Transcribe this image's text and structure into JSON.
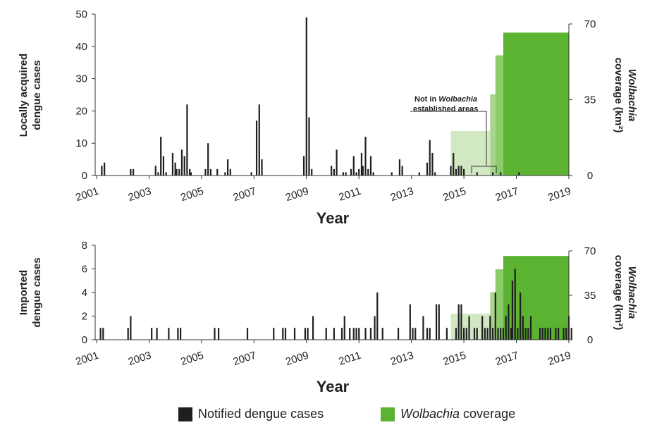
{
  "colors": {
    "cases": "#1f1f1f",
    "wolb_light": "#d2e8c3",
    "wolb_mid": "#a9d48d",
    "wolb_medium": "#8ccb6a",
    "wolb_dark": "#5cb331",
    "axis": "#333333"
  },
  "legend": {
    "cases_label": "Notified dengue cases",
    "wolbachia_label": "Wolbachia",
    "wolbachia_suffix": " coverage"
  },
  "chart_data": [
    {
      "type": "bar",
      "id": "local",
      "ylabel_lines": [
        "Locally acquired",
        "dengue cases"
      ],
      "y2label_italic": "Wolbachia",
      "y2label_rest": "coverage (km²)",
      "xlabel": "Year",
      "xlim": [
        2001,
        2019
      ],
      "ylim": [
        0,
        50
      ],
      "y2lim": [
        0,
        70
      ],
      "yticks": [
        "0",
        "10",
        "20",
        "30",
        "40",
        "50"
      ],
      "y2ticks": [
        "0",
        "35",
        "70"
      ],
      "xticks": [
        "2001",
        "2003",
        "2005",
        "2007",
        "2009",
        "2011",
        "2013",
        "2015",
        "2017",
        "2019"
      ],
      "annotation": {
        "line1_pre": "Not in ",
        "line1_italic": "Wolbachia",
        "line2": "established areas"
      },
      "wolbachia": [
        {
          "start": 2014.5,
          "end": 2016.0,
          "value": 20.5,
          "shade": "wolb_light"
        },
        {
          "start": 2016.0,
          "end": 2016.2,
          "value": 37.5,
          "shade": "wolb_mid"
        },
        {
          "start": 2016.2,
          "end": 2016.5,
          "value": 55.5,
          "shade": "wolb_medium"
        },
        {
          "start": 2016.5,
          "end": 2019.0,
          "value": 66.0,
          "shade": "wolb_dark"
        }
      ],
      "cases": [
        {
          "x": 2001.2,
          "y": 3
        },
        {
          "x": 2001.3,
          "y": 4
        },
        {
          "x": 2002.3,
          "y": 2
        },
        {
          "x": 2002.4,
          "y": 2
        },
        {
          "x": 2003.25,
          "y": 3
        },
        {
          "x": 2003.35,
          "y": 1
        },
        {
          "x": 2003.45,
          "y": 12
        },
        {
          "x": 2003.55,
          "y": 6
        },
        {
          "x": 2003.65,
          "y": 1
        },
        {
          "x": 2003.9,
          "y": 7
        },
        {
          "x": 2004.0,
          "y": 4
        },
        {
          "x": 2004.05,
          "y": 2
        },
        {
          "x": 2004.15,
          "y": 2
        },
        {
          "x": 2004.25,
          "y": 8
        },
        {
          "x": 2004.35,
          "y": 6
        },
        {
          "x": 2004.45,
          "y": 22
        },
        {
          "x": 2004.55,
          "y": 2
        },
        {
          "x": 2004.6,
          "y": 1
        },
        {
          "x": 2005.15,
          "y": 2
        },
        {
          "x": 2005.25,
          "y": 10
        },
        {
          "x": 2005.35,
          "y": 2
        },
        {
          "x": 2005.6,
          "y": 2
        },
        {
          "x": 2005.9,
          "y": 1
        },
        {
          "x": 2006.0,
          "y": 5
        },
        {
          "x": 2006.1,
          "y": 2
        },
        {
          "x": 2006.9,
          "y": 1
        },
        {
          "x": 2007.1,
          "y": 17
        },
        {
          "x": 2007.2,
          "y": 22
        },
        {
          "x": 2007.3,
          "y": 5
        },
        {
          "x": 2008.9,
          "y": 6
        },
        {
          "x": 2009.0,
          "y": 49
        },
        {
          "x": 2009.1,
          "y": 18
        },
        {
          "x": 2009.2,
          "y": 2
        },
        {
          "x": 2009.95,
          "y": 3
        },
        {
          "x": 2010.05,
          "y": 2
        },
        {
          "x": 2010.15,
          "y": 8
        },
        {
          "x": 2010.4,
          "y": 1
        },
        {
          "x": 2010.5,
          "y": 1
        },
        {
          "x": 2010.7,
          "y": 2
        },
        {
          "x": 2010.8,
          "y": 6
        },
        {
          "x": 2010.9,
          "y": 1
        },
        {
          "x": 2011.0,
          "y": 2
        },
        {
          "x": 2011.1,
          "y": 7
        },
        {
          "x": 2011.15,
          "y": 3
        },
        {
          "x": 2011.25,
          "y": 12
        },
        {
          "x": 2011.35,
          "y": 2
        },
        {
          "x": 2011.45,
          "y": 6
        },
        {
          "x": 2011.55,
          "y": 1
        },
        {
          "x": 2012.25,
          "y": 1
        },
        {
          "x": 2012.55,
          "y": 5
        },
        {
          "x": 2012.65,
          "y": 3
        },
        {
          "x": 2013.3,
          "y": 1
        },
        {
          "x": 2013.6,
          "y": 4
        },
        {
          "x": 2013.7,
          "y": 11
        },
        {
          "x": 2013.8,
          "y": 7
        },
        {
          "x": 2013.9,
          "y": 1
        },
        {
          "x": 2014.5,
          "y": 3
        },
        {
          "x": 2014.6,
          "y": 7
        },
        {
          "x": 2014.7,
          "y": 2
        },
        {
          "x": 2014.8,
          "y": 3
        },
        {
          "x": 2014.9,
          "y": 3
        },
        {
          "x": 2015.0,
          "y": 2
        },
        {
          "x": 2015.5,
          "y": 1
        },
        {
          "x": 2016.1,
          "y": 1
        },
        {
          "x": 2016.4,
          "y": 1
        },
        {
          "x": 2017.1,
          "y": 1
        }
      ]
    },
    {
      "type": "bar",
      "id": "imported",
      "ylabel_lines": [
        "Imported",
        "dengue cases"
      ],
      "y2label_italic": "Wolbachia",
      "y2label_rest": "coverage (km²)",
      "xlabel": "Year",
      "xlim": [
        2001,
        2019
      ],
      "ylim": [
        0,
        8
      ],
      "y2lim": [
        0,
        70
      ],
      "yticks": [
        "0",
        "2",
        "4",
        "6",
        "8"
      ],
      "y2ticks": [
        "0",
        "35",
        "70"
      ],
      "xticks": [
        "2001",
        "2003",
        "2005",
        "2007",
        "2009",
        "2011",
        "2013",
        "2015",
        "2017",
        "2019"
      ],
      "wolbachia": [
        {
          "start": 2014.5,
          "end": 2016.0,
          "value": 20.5,
          "shade": "wolb_light"
        },
        {
          "start": 2016.0,
          "end": 2016.2,
          "value": 37.5,
          "shade": "wolb_mid"
        },
        {
          "start": 2016.2,
          "end": 2016.5,
          "value": 55.5,
          "shade": "wolb_medium"
        },
        {
          "start": 2016.5,
          "end": 2019.0,
          "value": 66.0,
          "shade": "wolb_dark"
        }
      ],
      "cases": [
        {
          "x": 2001.15,
          "y": 1
        },
        {
          "x": 2001.25,
          "y": 1
        },
        {
          "x": 2002.2,
          "y": 1
        },
        {
          "x": 2002.3,
          "y": 2
        },
        {
          "x": 2003.1,
          "y": 1
        },
        {
          "x": 2003.3,
          "y": 1
        },
        {
          "x": 2003.75,
          "y": 1
        },
        {
          "x": 2004.1,
          "y": 1
        },
        {
          "x": 2004.2,
          "y": 1
        },
        {
          "x": 2005.5,
          "y": 1
        },
        {
          "x": 2005.65,
          "y": 1
        },
        {
          "x": 2006.75,
          "y": 1
        },
        {
          "x": 2007.75,
          "y": 1
        },
        {
          "x": 2008.1,
          "y": 1
        },
        {
          "x": 2008.2,
          "y": 1
        },
        {
          "x": 2008.55,
          "y": 1
        },
        {
          "x": 2008.95,
          "y": 1
        },
        {
          "x": 2009.05,
          "y": 1
        },
        {
          "x": 2009.25,
          "y": 2
        },
        {
          "x": 2009.75,
          "y": 1
        },
        {
          "x": 2010.05,
          "y": 1
        },
        {
          "x": 2010.35,
          "y": 1
        },
        {
          "x": 2010.45,
          "y": 2
        },
        {
          "x": 2010.65,
          "y": 1
        },
        {
          "x": 2010.8,
          "y": 1
        },
        {
          "x": 2010.9,
          "y": 1
        },
        {
          "x": 2011.0,
          "y": 1
        },
        {
          "x": 2011.25,
          "y": 1
        },
        {
          "x": 2011.45,
          "y": 1
        },
        {
          "x": 2011.6,
          "y": 2
        },
        {
          "x": 2011.7,
          "y": 4
        },
        {
          "x": 2011.9,
          "y": 1
        },
        {
          "x": 2012.5,
          "y": 1
        },
        {
          "x": 2012.95,
          "y": 3
        },
        {
          "x": 2013.05,
          "y": 1
        },
        {
          "x": 2013.15,
          "y": 1
        },
        {
          "x": 2013.45,
          "y": 2
        },
        {
          "x": 2013.6,
          "y": 1
        },
        {
          "x": 2013.7,
          "y": 1
        },
        {
          "x": 2013.95,
          "y": 3
        },
        {
          "x": 2014.05,
          "y": 3
        },
        {
          "x": 2014.35,
          "y": 1
        },
        {
          "x": 2014.7,
          "y": 1
        },
        {
          "x": 2014.8,
          "y": 3
        },
        {
          "x": 2014.9,
          "y": 3
        },
        {
          "x": 2015.0,
          "y": 1
        },
        {
          "x": 2015.1,
          "y": 1
        },
        {
          "x": 2015.2,
          "y": 2
        },
        {
          "x": 2015.4,
          "y": 1
        },
        {
          "x": 2015.5,
          "y": 1
        },
        {
          "x": 2015.7,
          "y": 2
        },
        {
          "x": 2015.8,
          "y": 1
        },
        {
          "x": 2015.9,
          "y": 1
        },
        {
          "x": 2016.0,
          "y": 2
        },
        {
          "x": 2016.1,
          "y": 1
        },
        {
          "x": 2016.2,
          "y": 4
        },
        {
          "x": 2016.3,
          "y": 1
        },
        {
          "x": 2016.4,
          "y": 1
        },
        {
          "x": 2016.5,
          "y": 1
        },
        {
          "x": 2016.6,
          "y": 2
        },
        {
          "x": 2016.7,
          "y": 3
        },
        {
          "x": 2016.8,
          "y": 1
        },
        {
          "x": 2016.85,
          "y": 5
        },
        {
          "x": 2016.95,
          "y": 6
        },
        {
          "x": 2017.05,
          "y": 1
        },
        {
          "x": 2017.15,
          "y": 4
        },
        {
          "x": 2017.25,
          "y": 2
        },
        {
          "x": 2017.35,
          "y": 1
        },
        {
          "x": 2017.45,
          "y": 1
        },
        {
          "x": 2017.55,
          "y": 2
        },
        {
          "x": 2017.9,
          "y": 1
        },
        {
          "x": 2018.0,
          "y": 1
        },
        {
          "x": 2018.1,
          "y": 1
        },
        {
          "x": 2018.2,
          "y": 1
        },
        {
          "x": 2018.3,
          "y": 1
        },
        {
          "x": 2018.5,
          "y": 1
        },
        {
          "x": 2018.6,
          "y": 1
        },
        {
          "x": 2018.8,
          "y": 1
        },
        {
          "x": 2018.9,
          "y": 1
        },
        {
          "x": 2019.0,
          "y": 2
        },
        {
          "x": 2019.1,
          "y": 1
        }
      ]
    }
  ]
}
